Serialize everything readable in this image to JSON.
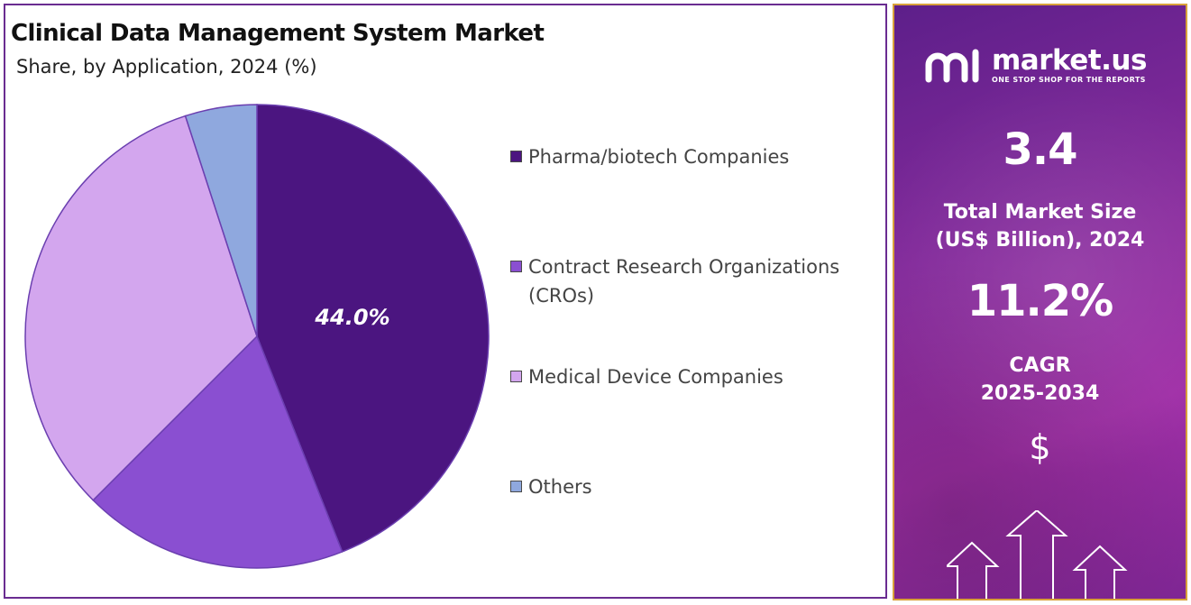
{
  "chart_data": {
    "type": "pie",
    "title": "Clinical Data Management System Market",
    "subtitle": "Share, by Application, 2024 (%)",
    "series": [
      {
        "name": "Pharma/biotech Companies",
        "value": 44.0,
        "color": "#4b1580",
        "label": "44.0%"
      },
      {
        "name": "Contract Research Organizations (CROs)",
        "value": 18.5,
        "color": "#8a4fd1",
        "label": ""
      },
      {
        "name": "Medical Device Companies",
        "value": 32.5,
        "color": "#d3a6ee",
        "label": ""
      },
      {
        "name": "Others",
        "value": 5.0,
        "color": "#8fa8de",
        "label": ""
      }
    ],
    "start_angle_deg": 0,
    "direction": "clockwise",
    "legend_position": "right"
  },
  "brand": {
    "name": "market.us",
    "tagline": "ONE STOP SHOP FOR THE REPORTS",
    "logo_icon": "market-us-logo-icon"
  },
  "stats": {
    "market_size_value": "3.4",
    "market_size_label_line1": "Total Market Size",
    "market_size_label_line2": "(US$ Billion), 2024",
    "cagr_value": "11.2%",
    "cagr_label_line1": "CAGR",
    "cagr_label_line2": "2025-2034",
    "currency_symbol": "$"
  },
  "colors": {
    "panel_border": "#6a2c91",
    "side_panel_border": "#d8a03a",
    "side_panel_bg": "#8a2c9e"
  }
}
